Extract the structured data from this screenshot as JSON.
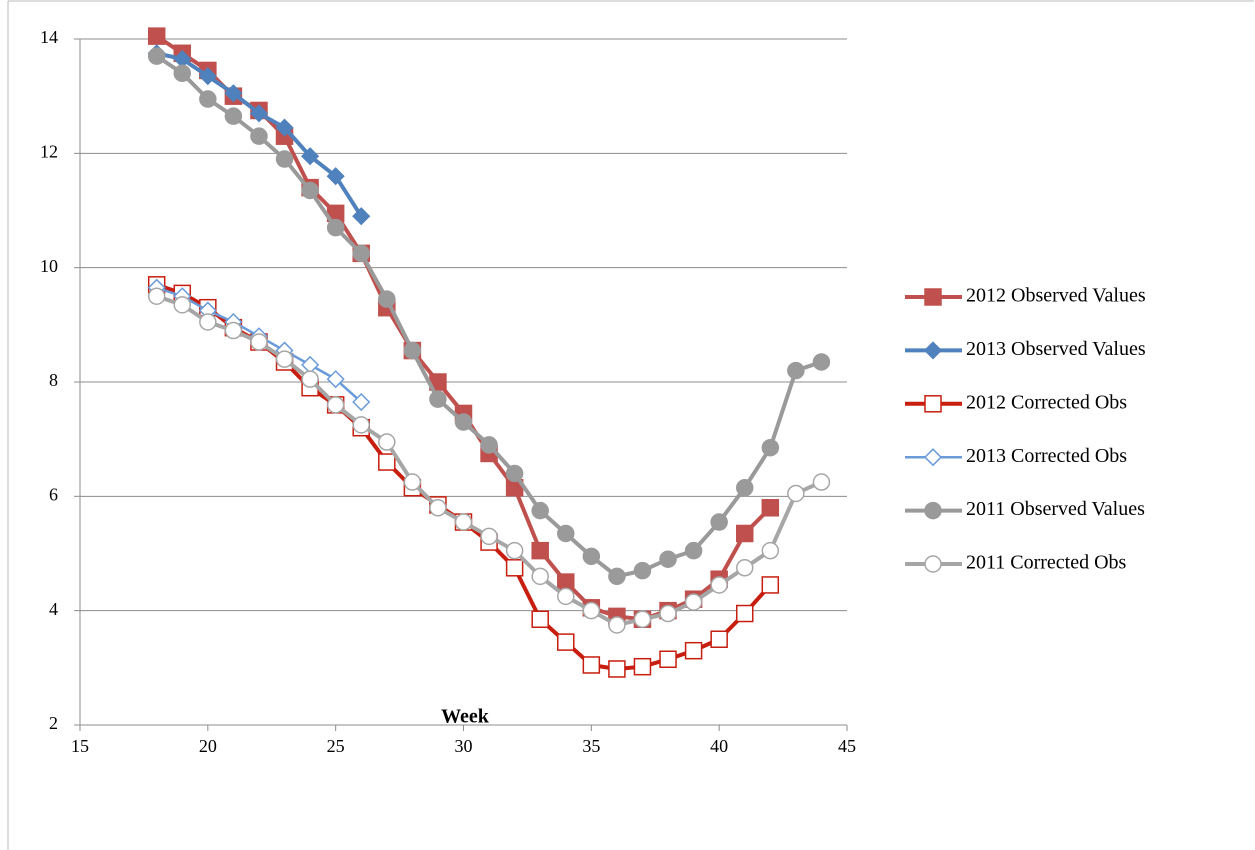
{
  "chart_data": {
    "type": "line",
    "x_label": "Week",
    "x": [
      18,
      19,
      20,
      21,
      22,
      23,
      24,
      25,
      26,
      27,
      28,
      29,
      30,
      31,
      32,
      33,
      34,
      35,
      36,
      37,
      38,
      39,
      40,
      41,
      42,
      43,
      44
    ],
    "xlim": [
      15,
      45
    ],
    "xticks": [
      15,
      20,
      25,
      30,
      35,
      40,
      45
    ],
    "ylim": [
      2,
      14
    ],
    "yticks": [
      2,
      4,
      6,
      8,
      10,
      12,
      14
    ],
    "grid": true,
    "legend": "right",
    "series": [
      {
        "name": "2012 Observed Values",
        "color": "#c0504d",
        "marker": "square",
        "filled": true,
        "values": [
          14.05,
          13.75,
          13.45,
          13.0,
          12.75,
          12.3,
          11.4,
          10.95,
          10.25,
          9.3,
          8.55,
          8.0,
          7.45,
          6.75,
          6.15,
          5.05,
          4.5,
          4.05,
          3.9,
          3.85,
          4.0,
          4.2,
          4.55,
          5.35,
          5.8,
          null,
          null
        ]
      },
      {
        "name": "2013 Observed Values",
        "color": "#4f81bd",
        "marker": "diamond",
        "filled": true,
        "values": [
          13.75,
          13.65,
          13.35,
          13.05,
          12.7,
          12.45,
          11.95,
          11.6,
          10.9,
          null,
          null,
          null,
          null,
          null,
          null,
          null,
          null,
          null,
          null,
          null,
          null,
          null,
          null,
          null,
          null,
          null,
          null
        ]
      },
      {
        "name": "2012 Corrected Obs",
        "color": "#c81e0f",
        "marker": "square",
        "filled": false,
        "values": [
          9.7,
          9.55,
          9.3,
          8.95,
          8.7,
          8.35,
          7.9,
          7.6,
          7.2,
          6.6,
          6.15,
          5.85,
          5.55,
          5.2,
          4.75,
          3.85,
          3.45,
          3.05,
          2.98,
          3.02,
          3.15,
          3.3,
          3.5,
          3.95,
          4.45,
          null,
          null
        ]
      },
      {
        "name": "2013 Corrected Obs",
        "color": "#6a9bd8",
        "marker": "diamond",
        "filled": false,
        "values": [
          9.65,
          9.5,
          9.25,
          9.05,
          8.8,
          8.55,
          8.3,
          8.05,
          7.65,
          null,
          null,
          null,
          null,
          null,
          null,
          null,
          null,
          null,
          null,
          null,
          null,
          null,
          null,
          null,
          null,
          null,
          null
        ]
      },
      {
        "name": "2011 Observed Values",
        "color": "#9a9a9a",
        "marker": "circle",
        "filled": true,
        "values": [
          13.7,
          13.4,
          12.95,
          12.65,
          12.3,
          11.9,
          11.35,
          10.7,
          10.25,
          9.45,
          8.55,
          7.7,
          7.3,
          6.9,
          6.4,
          5.75,
          5.35,
          4.95,
          4.6,
          4.7,
          4.9,
          5.05,
          5.55,
          6.15,
          6.85,
          8.2,
          8.35
        ]
      },
      {
        "name": "2011 Corrected Obs",
        "color": "#a6a6a6",
        "marker": "circle",
        "filled": false,
        "values": [
          9.5,
          9.35,
          9.05,
          8.9,
          8.7,
          8.4,
          8.05,
          7.6,
          7.25,
          6.95,
          6.25,
          5.8,
          5.55,
          5.3,
          5.05,
          4.6,
          4.25,
          4.0,
          3.75,
          3.85,
          3.95,
          4.15,
          4.45,
          4.75,
          5.05,
          6.05,
          6.25
        ]
      }
    ]
  }
}
